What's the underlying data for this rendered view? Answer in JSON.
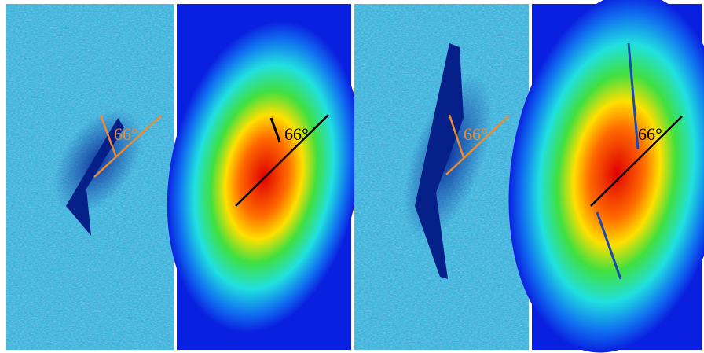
{
  "panels": [
    {
      "angle_label": "66°"
    },
    {
      "angle_label": "66°"
    },
    {
      "angle_label": "66°"
    },
    {
      "angle_label": "66°"
    }
  ]
}
